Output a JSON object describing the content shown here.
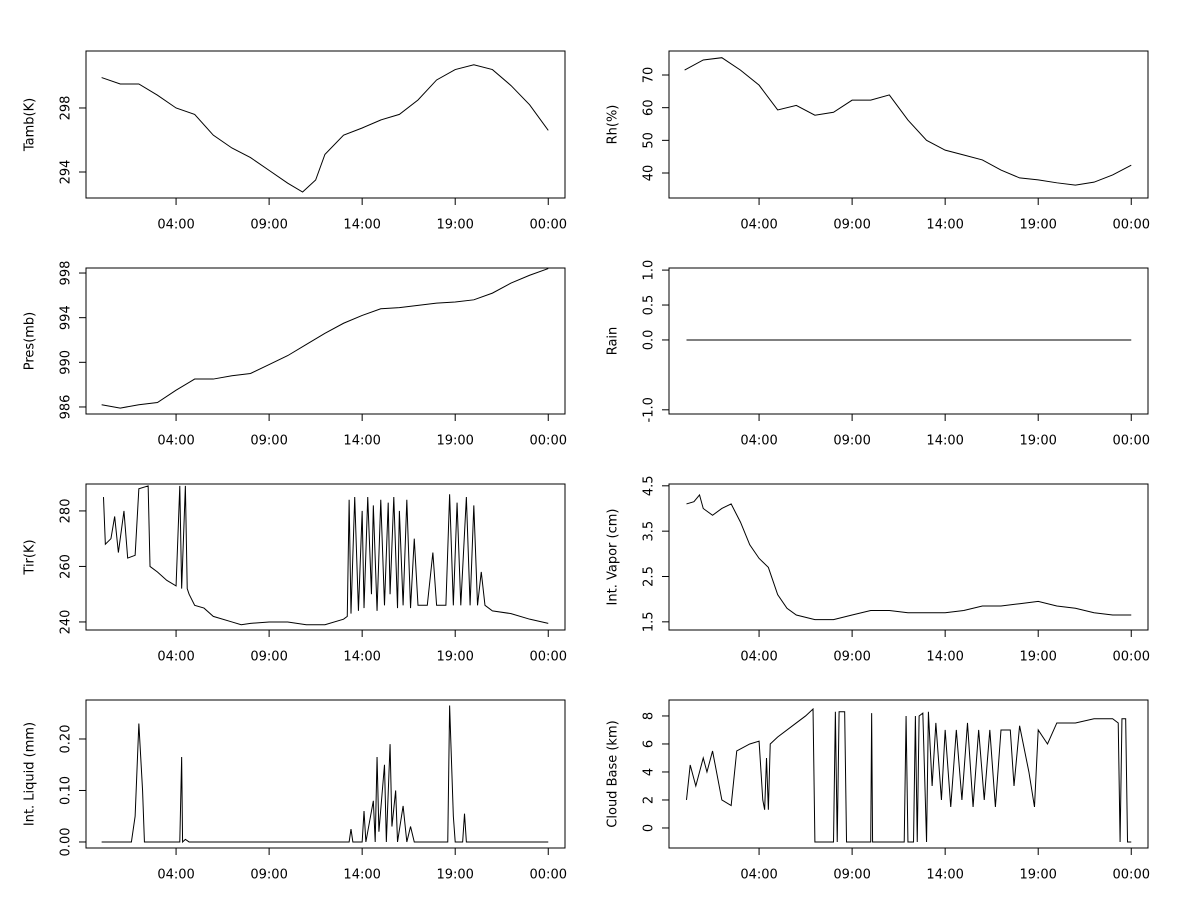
{
  "chart_data": [
    {
      "type": "line",
      "ylabel": "Tamb(K)",
      "color": "#000000",
      "x": [
        0,
        1,
        2,
        3,
        4,
        5,
        6,
        7,
        8,
        9,
        10,
        10.8,
        11.5,
        12,
        13,
        14,
        15,
        16,
        17,
        18,
        19,
        20,
        21,
        22,
        23,
        24
      ],
      "values": [
        299.9,
        299.5,
        299.5,
        298.8,
        298,
        297.6,
        296.3,
        295.5,
        294.9,
        294.1,
        293.3,
        292.75,
        293.5,
        295.1,
        296.3,
        296.75,
        297.25,
        297.6,
        298.5,
        299.75,
        300.4,
        300.7,
        300.4,
        299.4,
        298.2,
        296.6
      ],
      "xlim": [
        -0.84,
        24.9
      ],
      "xticks": [
        {
          "value": 4,
          "label": "04:00"
        },
        {
          "value": 9,
          "label": "09:00"
        },
        {
          "value": 14,
          "label": "14:00"
        },
        {
          "value": 19,
          "label": "19:00"
        },
        {
          "value": 24,
          "label": "00:00"
        }
      ],
      "ylim": [
        292.375,
        301.56
      ],
      "yticks": [
        294,
        298
      ]
    },
    {
      "type": "line",
      "ylabel": "Rh(%)",
      "color": "#000000",
      "x": [
        0,
        1,
        2,
        3,
        4,
        5,
        6,
        7,
        8,
        9,
        10,
        11,
        12,
        13,
        14,
        15,
        16,
        17,
        18,
        19,
        20,
        21,
        22,
        23,
        24
      ],
      "values": [
        71.5,
        74.6,
        75.3,
        71.5,
        66.9,
        59.3,
        60.7,
        57.7,
        58.6,
        62.3,
        62.3,
        63.9,
        56.2,
        50,
        47,
        45.5,
        44,
        40.9,
        38.5,
        37.9,
        37,
        36.3,
        37.2,
        39.4,
        42.4
      ],
      "xlim": [
        -0.84,
        24.9
      ],
      "xticks": [
        {
          "value": 4,
          "label": "04:00"
        },
        {
          "value": 9,
          "label": "09:00"
        },
        {
          "value": 14,
          "label": "14:00"
        },
        {
          "value": 19,
          "label": "19:00"
        },
        {
          "value": 24,
          "label": "00:00"
        }
      ],
      "ylim": [
        32.35,
        77.35
      ],
      "yticks": [
        40,
        50,
        60,
        70
      ]
    },
    {
      "type": "line",
      "ylabel": "Pres(mb)",
      "color": "#000000",
      "x": [
        0,
        1,
        2,
        3,
        4,
        5,
        6,
        7,
        8,
        9,
        10,
        11,
        12,
        13,
        14,
        15,
        16,
        17,
        18,
        19,
        20,
        21,
        22,
        23,
        24
      ],
      "values": [
        986.2,
        985.9,
        986.2,
        986.4,
        987.5,
        988.5,
        988.5,
        988.8,
        989,
        989.8,
        990.6,
        991.6,
        992.6,
        993.5,
        994.2,
        994.8,
        994.9,
        995.1,
        995.3,
        995.4,
        995.6,
        996.2,
        997.1,
        997.8,
        998.4
      ],
      "xlim": [
        -0.84,
        24.9
      ],
      "xticks": [
        {
          "value": 4,
          "label": "04:00"
        },
        {
          "value": 9,
          "label": "09:00"
        },
        {
          "value": 14,
          "label": "14:00"
        },
        {
          "value": 19,
          "label": "19:00"
        },
        {
          "value": 24,
          "label": "00:00"
        }
      ],
      "ylim": [
        985.37,
        998.45
      ],
      "yticks": [
        986,
        990,
        994,
        998
      ]
    },
    {
      "type": "line",
      "ylabel": "Rain",
      "color": "#000000",
      "x": [
        0.1,
        24
      ],
      "values": [
        0,
        0
      ],
      "xlim": [
        -0.84,
        24.9
      ],
      "xticks": [
        {
          "value": 4,
          "label": "04:00"
        },
        {
          "value": 9,
          "label": "09:00"
        },
        {
          "value": 14,
          "label": "14:00"
        },
        {
          "value": 19,
          "label": "19:00"
        },
        {
          "value": 24,
          "label": "00:00"
        }
      ],
      "ylim": [
        -1.06,
        1.03
      ],
      "yticks": [
        {
          "value": 1,
          "label": "1.0"
        },
        {
          "value": 0.5,
          "label": "0.5"
        },
        {
          "value": 0,
          "label": "0.0"
        },
        {
          "value": -1,
          "label": "-1.0"
        }
      ]
    },
    {
      "type": "line",
      "ylabel": "Tir(K)",
      "color": "#000000",
      "x": [
        0.1,
        0.2,
        0.5,
        0.7,
        0.9,
        1.2,
        1.4,
        1.8,
        2.0,
        2.5,
        2.6,
        3.0,
        3.5,
        4.0,
        4.2,
        4.3,
        4.5,
        4.6,
        4.7,
        5.0,
        5.5,
        6.0,
        7.0,
        7.5,
        8.0,
        9.0,
        10.0,
        11.0,
        12.0,
        13.0,
        13.2,
        13.3,
        13.4,
        13.6,
        13.8,
        14.0,
        14.1,
        14.3,
        14.5,
        14.6,
        14.8,
        15.0,
        15.2,
        15.4,
        15.5,
        15.7,
        15.9,
        16.0,
        16.2,
        16.4,
        16.6,
        16.8,
        17.0,
        17.5,
        17.8,
        18.0,
        18.5,
        18.7,
        18.9,
        19.1,
        19.3,
        19.6,
        19.8,
        20.0,
        20.2,
        20.4,
        20.6,
        21,
        22,
        23,
        24
      ],
      "values": [
        285,
        268,
        270,
        278,
        265,
        280,
        263,
        264,
        288,
        289,
        260,
        258,
        255,
        253,
        289,
        252,
        289,
        252,
        250,
        246,
        245,
        242,
        240,
        239,
        239.5,
        240,
        240,
        239,
        239,
        241,
        242,
        284,
        243,
        285,
        244,
        280,
        245,
        285,
        250,
        282,
        244,
        284,
        246,
        283,
        250,
        285,
        245,
        280,
        246,
        284,
        245,
        270,
        246,
        246,
        265,
        246,
        246,
        286,
        246,
        283,
        246,
        285,
        246,
        282,
        246,
        258,
        246,
        244,
        243,
        241,
        239.5
      ],
      "xlim": [
        -0.84,
        24.9
      ],
      "xticks": [
        {
          "value": 4,
          "label": "04:00"
        },
        {
          "value": 9,
          "label": "09:00"
        },
        {
          "value": 14,
          "label": "14:00"
        },
        {
          "value": 19,
          "label": "19:00"
        },
        {
          "value": 24,
          "label": "00:00"
        }
      ],
      "ylim": [
        237.1,
        289.7
      ],
      "yticks": [
        240,
        260,
        280
      ]
    },
    {
      "type": "line",
      "ylabel": "Int. Vapor (cm)",
      "color": "#000000",
      "x": [
        0.1,
        0.5,
        0.8,
        1,
        1.5,
        2,
        2.5,
        3,
        3.5,
        4,
        4.5,
        5,
        5.5,
        6,
        7,
        8,
        9,
        10,
        11,
        12,
        13,
        14,
        15,
        16,
        17,
        18,
        19,
        20,
        21,
        22,
        23,
        24
      ],
      "values": [
        4.1,
        4.15,
        4.3,
        4.0,
        3.85,
        4.0,
        4.1,
        3.7,
        3.2,
        2.9,
        2.7,
        2.1,
        1.8,
        1.65,
        1.55,
        1.55,
        1.65,
        1.75,
        1.75,
        1.7,
        1.7,
        1.7,
        1.75,
        1.85,
        1.85,
        1.9,
        1.95,
        1.85,
        1.8,
        1.7,
        1.65,
        1.65
      ],
      "xlim": [
        -0.84,
        24.9
      ],
      "xticks": [
        {
          "value": 4,
          "label": "04:00"
        },
        {
          "value": 9,
          "label": "09:00"
        },
        {
          "value": 14,
          "label": "14:00"
        },
        {
          "value": 19,
          "label": "19:00"
        },
        {
          "value": 24,
          "label": "00:00"
        }
      ],
      "ylim": [
        1.32,
        4.54
      ],
      "yticks": [
        4.5,
        3.5,
        2.5,
        1.5
      ]
    },
    {
      "type": "line",
      "ylabel": "Int. Liquid (mm)",
      "color": "#000000",
      "x": [
        0,
        1.6,
        1.8,
        2.0,
        2.2,
        2.3,
        4.2,
        4.3,
        4.35,
        4.5,
        4.7,
        13.3,
        13.4,
        13.5,
        14.0,
        14.1,
        14.2,
        14.6,
        14.7,
        14.8,
        14.9,
        15.2,
        15.3,
        15.5,
        15.6,
        15.8,
        15.9,
        16.2,
        16.4,
        16.6,
        16.8,
        18.6,
        18.7,
        18.9,
        19.0,
        19.4,
        19.5,
        19.6,
        24
      ],
      "values": [
        0,
        0,
        0.05,
        0.23,
        0.1,
        0,
        0,
        0.165,
        0,
        0.005,
        0,
        0,
        0.025,
        0,
        0,
        0.06,
        0,
        0.08,
        0,
        0.165,
        0.02,
        0.15,
        0,
        0.19,
        0.03,
        0.1,
        0,
        0.07,
        0,
        0.03,
        0,
        0,
        0.265,
        0.05,
        0,
        0,
        0.055,
        0,
        0
      ],
      "xlim": [
        -0.84,
        24.9
      ],
      "xticks": [
        {
          "value": 4,
          "label": "04:00"
        },
        {
          "value": 9,
          "label": "09:00"
        },
        {
          "value": 14,
          "label": "14:00"
        },
        {
          "value": 19,
          "label": "19:00"
        },
        {
          "value": 24,
          "label": "00:00"
        }
      ],
      "ylim": [
        -0.0117,
        0.2757
      ],
      "yticks": [
        {
          "value": 0.2,
          "label": "0.20"
        },
        {
          "value": 0.1,
          "label": "0.10"
        },
        {
          "value": 0,
          "label": "0.00"
        }
      ]
    },
    {
      "type": "line",
      "ylabel": "Cloud Base (km)",
      "color": "#000000",
      "x": [
        0.1,
        0.3,
        0.6,
        1,
        1.2,
        1.5,
        2,
        2.5,
        2.8,
        3.5,
        4,
        4.2,
        4.3,
        4.4,
        4.5,
        4.6,
        5,
        6,
        6.5,
        6.9,
        7.0,
        8.0,
        8.1,
        8.2,
        8.3,
        8.6,
        8.7,
        10.0,
        10.05,
        10.1,
        11.8,
        11.9,
        12.0,
        12.3,
        12.4,
        12.5,
        12.6,
        12.8,
        13.0,
        13.1,
        13.3,
        13.5,
        13.8,
        14,
        14.3,
        14.6,
        14.9,
        15.2,
        15.5,
        15.8,
        16.1,
        16.4,
        16.7,
        17,
        17.5,
        17.7,
        18,
        18.5,
        18.8,
        19,
        19.5,
        20,
        21,
        22,
        23,
        23.3,
        23.4,
        23.5,
        23.7,
        23.8,
        24
      ],
      "values": [
        2,
        4.5,
        3,
        5,
        4,
        5.5,
        2,
        1.6,
        5.5,
        6,
        6.2,
        2,
        1.3,
        5,
        1.3,
        6,
        6.5,
        7.5,
        8,
        8.5,
        -1,
        -1,
        8.3,
        -1,
        8.3,
        8.3,
        -1,
        -1,
        8.2,
        -1,
        -1,
        8,
        -1,
        -1,
        8,
        -1,
        8,
        8.2,
        -1,
        8.3,
        3,
        7.5,
        2,
        7,
        1.5,
        7,
        2,
        7.5,
        1.5,
        7,
        2,
        7,
        1.5,
        7,
        7,
        3,
        7.3,
        4,
        1.5,
        7,
        6,
        7.5,
        7.5,
        7.8,
        7.8,
        7.5,
        -1,
        7.8,
        7.8,
        -1,
        -1
      ],
      "xlim": [
        -0.84,
        24.9
      ],
      "xticks": [
        {
          "value": 4,
          "label": "04:00"
        },
        {
          "value": 9,
          "label": "09:00"
        },
        {
          "value": 14,
          "label": "14:00"
        },
        {
          "value": 19,
          "label": "19:00"
        },
        {
          "value": 24,
          "label": "00:00"
        }
      ],
      "ylim": [
        -1.43,
        9.14
      ],
      "yticks": [
        0,
        2,
        4,
        6,
        8
      ]
    }
  ]
}
